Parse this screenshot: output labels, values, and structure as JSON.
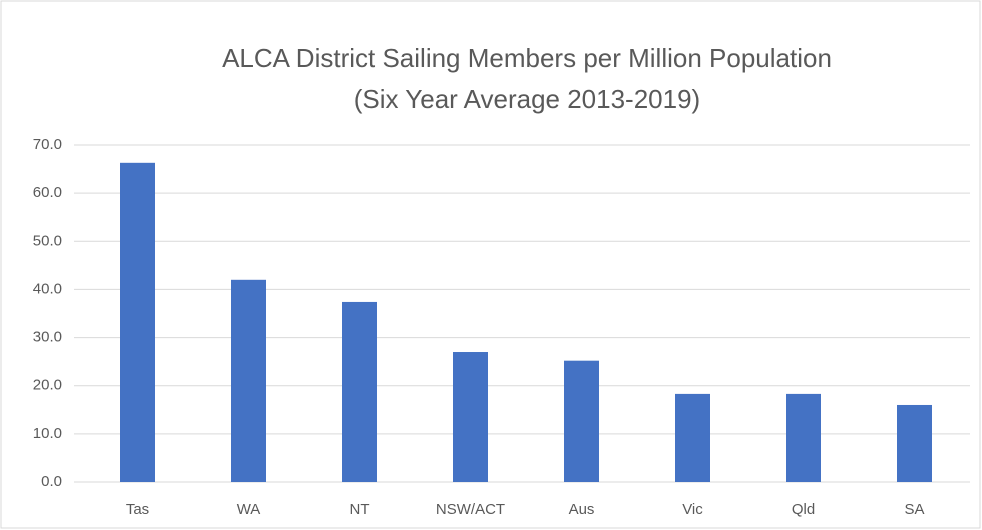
{
  "chart_data": {
    "type": "bar",
    "title": "ALCA District Sailing Members per Million Population",
    "subtitle": "(Six Year Average 2013-2019)",
    "categories": [
      "Tas",
      "WA",
      "NT",
      "NSW/ACT",
      "Aus",
      "Vic",
      "Qld",
      "SA"
    ],
    "values": [
      66.3,
      42.0,
      37.4,
      27.0,
      25.2,
      18.3,
      18.3,
      16.0
    ],
    "color": "#4472c4",
    "ylim": [
      0,
      70
    ],
    "yticks": [
      {
        "value": 0,
        "label": "0.0"
      },
      {
        "value": 10,
        "label": "10.0"
      },
      {
        "value": 20,
        "label": "20.0"
      },
      {
        "value": 30,
        "label": "30.0"
      },
      {
        "value": 40,
        "label": "40.0"
      },
      {
        "value": 50,
        "label": "50.0"
      },
      {
        "value": 60,
        "label": "60.0"
      },
      {
        "value": 70,
        "label": "70.0"
      }
    ],
    "grid": true
  }
}
